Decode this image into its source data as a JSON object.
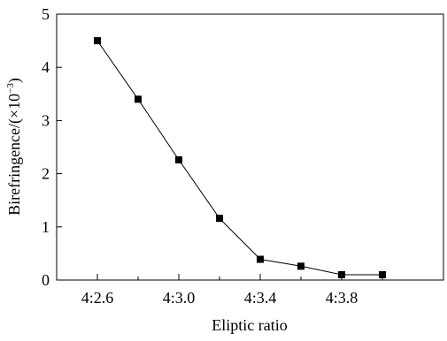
{
  "chart_data": {
    "type": "line",
    "title": "",
    "xlabel": "Eliptic ratio",
    "ylabel_main": "Birefringence/(×10",
    "ylabel_exp": "−3",
    "ylabel_close": ")",
    "x_ticks": [
      {
        "value": 2.6,
        "label": "4:2.6"
      },
      {
        "value": 3.0,
        "label": "4:3.0"
      },
      {
        "value": 3.4,
        "label": "4:3.4"
      },
      {
        "value": 3.8,
        "label": "4:3.8"
      }
    ],
    "x_minor_ticks": [
      2.8,
      3.2,
      3.6,
      4.0
    ],
    "y_ticks": [
      0,
      1,
      2,
      3,
      4,
      5
    ],
    "xlim": [
      2.4,
      4.3
    ],
    "ylim": [
      0,
      5
    ],
    "series": [
      {
        "x": [
          2.6,
          2.8,
          3.0,
          3.2,
          3.4,
          3.6,
          3.8,
          4.0
        ],
        "values": [
          4.5,
          3.4,
          2.26,
          1.16,
          0.39,
          0.26,
          0.1,
          0.1
        ]
      }
    ],
    "marker": "square",
    "line_color": "#000000",
    "grid": false,
    "legend": "none"
  }
}
